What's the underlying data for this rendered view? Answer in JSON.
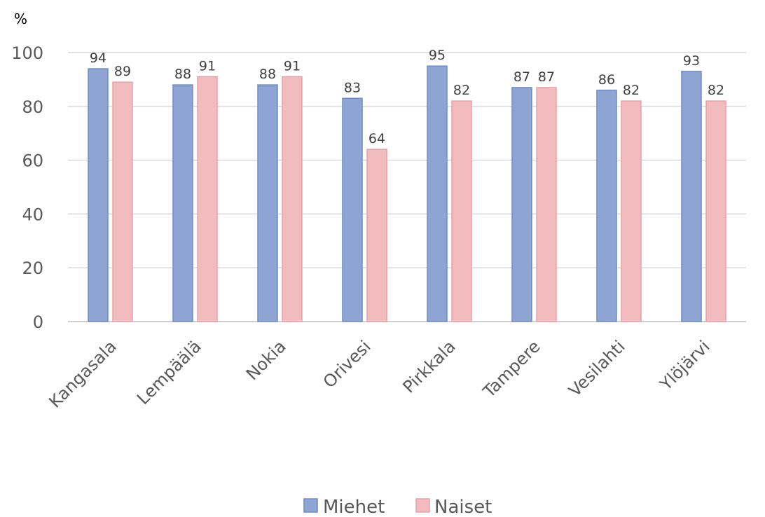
{
  "chart_data": {
    "type": "bar",
    "ylabel": "%",
    "ylim": [
      0,
      100
    ],
    "yticks": [
      0,
      20,
      40,
      60,
      80,
      100
    ],
    "grid": true,
    "legend_position": "bottom",
    "categories": [
      "Kangasala",
      "Lempäälä",
      "Nokia",
      "Orivesi",
      "Pirkkala",
      "Tampere",
      "Vesilahti",
      "Ylöjärvi"
    ],
    "series": [
      {
        "name": "Miehet",
        "color": "#8ea4d2",
        "edge": "#6f8cc8",
        "values": [
          94,
          88,
          88,
          83,
          95,
          87,
          86,
          93
        ]
      },
      {
        "name": "Naiset",
        "color": "#f2bcbf",
        "edge": "#e8a0a5",
        "values": [
          89,
          91,
          91,
          64,
          82,
          87,
          82,
          82
        ]
      }
    ]
  }
}
